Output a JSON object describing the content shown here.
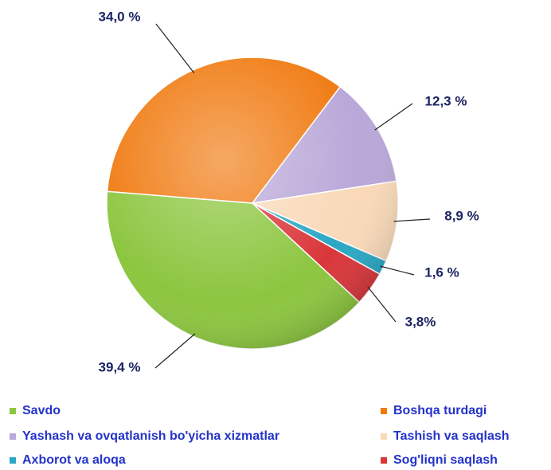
{
  "chart_data": {
    "type": "pie",
    "categories": [
      "Savdo",
      "Boshqa turdagi",
      "Yashash va ovqatlanish bo'yicha xizmatlar",
      "Tashish va saqlash",
      "Axborot va aloqa",
      "Sog'liqni saqlash"
    ],
    "values": [
      39.4,
      34.0,
      12.3,
      8.9,
      1.6,
      3.8
    ],
    "value_labels": [
      "39,4 %",
      "34,0 %",
      "12,3 %",
      "8,9 %",
      "1,6 %",
      "3,8%"
    ],
    "colors": [
      "#8cc63f",
      "#f07a10",
      "#b9a7d8",
      "#f9d9b8",
      "#2aa7c4",
      "#d9363a"
    ]
  }
}
